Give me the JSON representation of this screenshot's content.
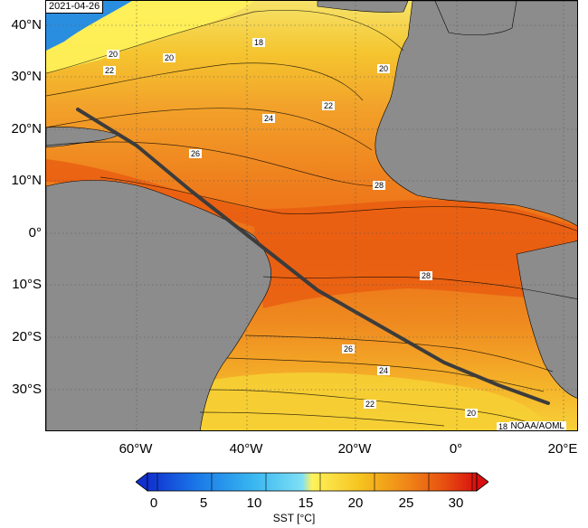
{
  "map": {
    "date": "2021-04-26",
    "credit": "NOAA/AOML",
    "lat_labels": [
      "40°N",
      "30°N",
      "20°N",
      "10°N",
      "0°",
      "10°S",
      "20°S",
      "30°S"
    ],
    "lon_labels": [
      "60°W",
      "40°W",
      "20°W",
      "0°",
      "20°E"
    ],
    "contour_labels": [
      "18",
      "20",
      "22",
      "20",
      "20",
      "22",
      "24",
      "26",
      "28",
      "28",
      "26",
      "24",
      "22",
      "20",
      "18"
    ],
    "track_line": "ship-track"
  },
  "colorbar": {
    "ticks": [
      "0",
      "5",
      "10",
      "15",
      "20",
      "25",
      "30"
    ],
    "title": "SST [°C]",
    "colors": [
      "#1030d0",
      "#1a78e8",
      "#38b6f0",
      "#7fe0f5",
      "#fff25a",
      "#f5c21e",
      "#f08a18",
      "#e85010",
      "#d81010"
    ]
  }
}
